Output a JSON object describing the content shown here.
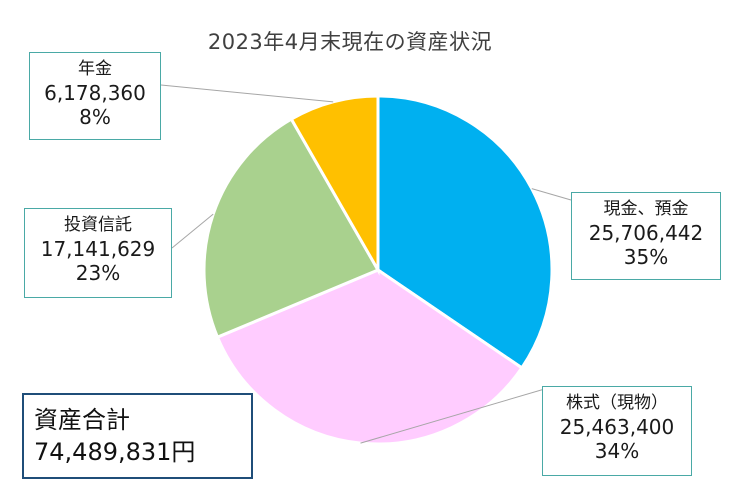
{
  "chart_data": {
    "type": "pie",
    "title": "2023年4月末現在の資産状況",
    "slices": [
      {
        "label": "現金、預金",
        "value": 25706442,
        "value_text": "25,706,442",
        "percent_text": "35%",
        "color": "#00b0f0"
      },
      {
        "label": "株式（現物）",
        "value": 25463400,
        "value_text": "25,463,400",
        "percent_text": "34%",
        "color": "#ffccff"
      },
      {
        "label": "投資信託",
        "value": 17141629,
        "value_text": "17,141,629",
        "percent_text": "23%",
        "color": "#a9d18e"
      },
      {
        "label": "年金",
        "value": 6178360,
        "value_text": "6,178,360",
        "percent_text": "8%",
        "color": "#ffc000"
      }
    ],
    "total": {
      "label": "資産合計",
      "value_text": "74,489,831円"
    }
  }
}
